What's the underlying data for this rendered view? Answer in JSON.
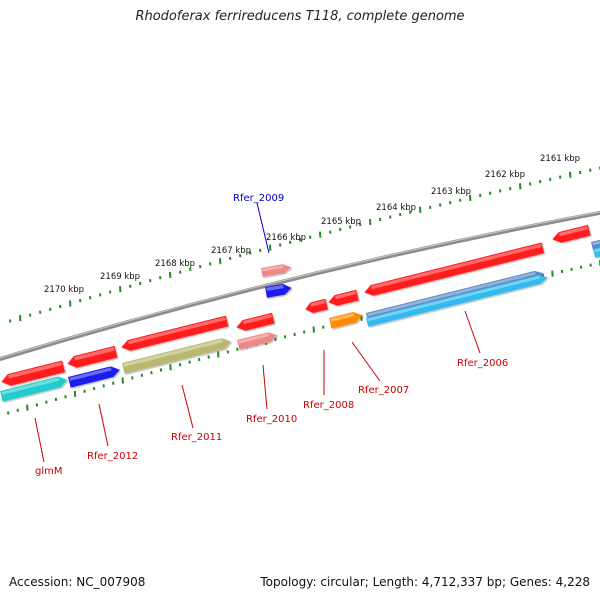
{
  "title": "Rhodoferax ferrireducens T118, complete genome",
  "footer": {
    "accession": "Accession: NC_007908",
    "topology": "Topology: circular; Length: 4,712,337 bp; Genes: 4,228"
  },
  "colors": {
    "backbone": "#8c8c8c",
    "tick": "#228b22",
    "gene_label": "#cc0000",
    "highlight_label": "#0000cc",
    "gene_red": "#ff1a1a",
    "gene_pink": "#ee8888",
    "gene_blue": "#1a1aee",
    "gene_cyan": "#22cccc",
    "gene_olive": "#b8b870",
    "gene_orange": "#ff8c00",
    "gene_steel": "#5a8ac6",
    "gene_sky": "#33bbee"
  },
  "kbp_labels": [
    "2161 kbp",
    "2162 kbp",
    "2163 kbp",
    "2164 kbp",
    "2165 kbp",
    "2166 kbp",
    "2167 kbp",
    "2168 kbp",
    "2169 kbp",
    "2170 kbp"
  ],
  "gene_labels": [
    "glmM",
    "Rfer_2012",
    "Rfer_2011",
    "Rfer_2010",
    "Rfer_2009",
    "Rfer_2008",
    "Rfer_2007",
    "Rfer_2006"
  ]
}
